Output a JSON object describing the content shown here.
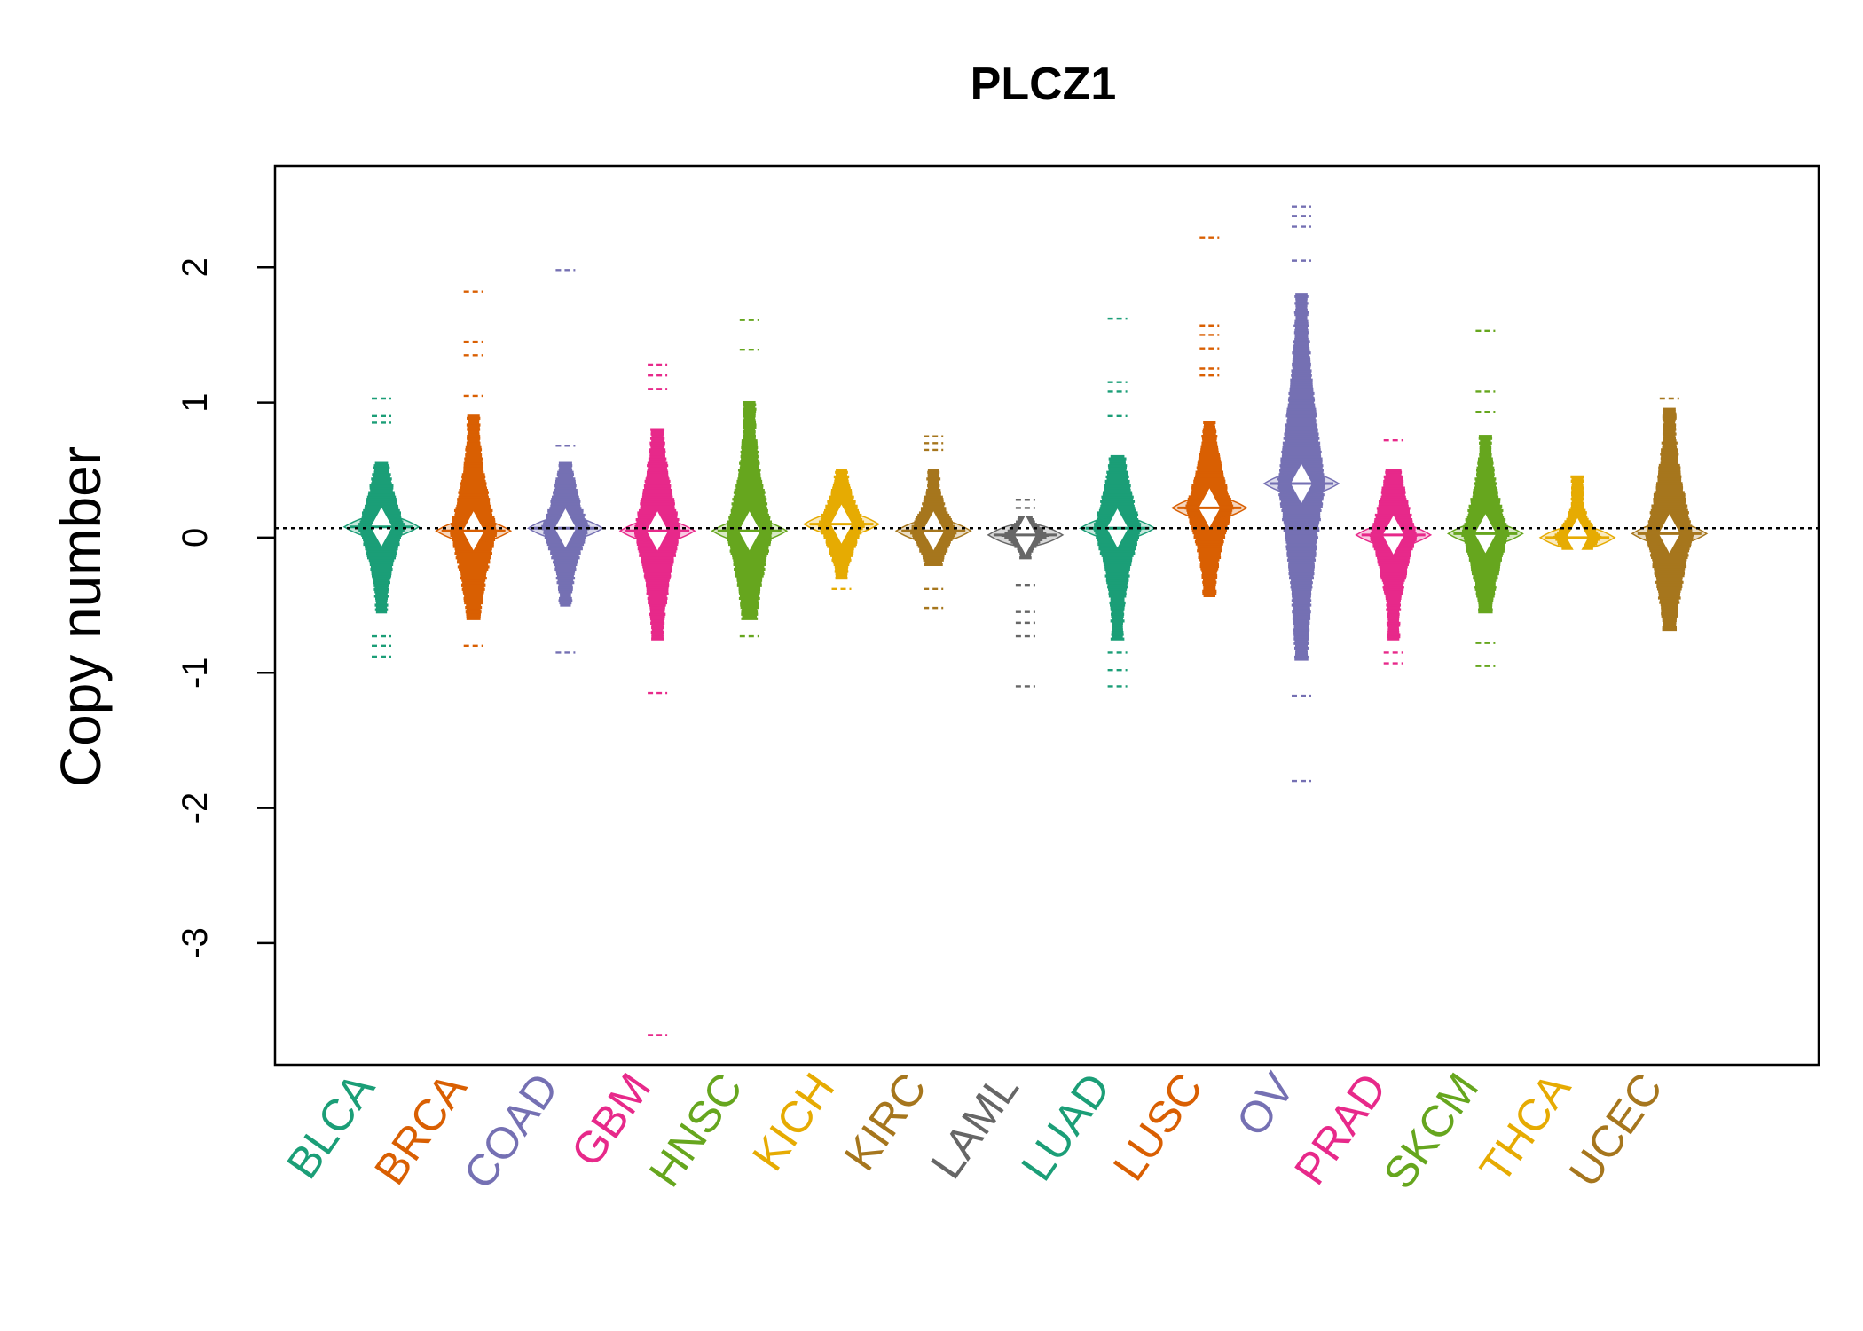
{
  "chart_data": {
    "type": "beanplot",
    "title": "PLCZ1",
    "xlabel": "",
    "ylabel": "Copy number",
    "ylim": [
      -3.9,
      2.75
    ],
    "yticks": [
      -3,
      -2,
      -1,
      0,
      1,
      2
    ],
    "reference_line": 0.07,
    "categories": [
      "BLCA",
      "BRCA",
      "COAD",
      "GBM",
      "HNSC",
      "KICH",
      "KIRC",
      "LAML",
      "LUAD",
      "LUSC",
      "OV",
      "PRAD",
      "SKCM",
      "THCA",
      "UCEC"
    ],
    "colors": {
      "BLCA": "#1b9e77",
      "BRCA": "#d95f02",
      "COAD": "#7570b3",
      "GBM": "#e7298a",
      "HNSC": "#66a61e",
      "KICH": "#e6ab02",
      "KIRC": "#a6761d",
      "LAML": "#666666",
      "LUAD": "#1b9e77",
      "LUSC": "#d95f02",
      "OV": "#7570b3",
      "PRAD": "#e7298a",
      "SKCM": "#66a61e",
      "THCA": "#e6ab02",
      "UCEC": "#a6761d"
    },
    "series": [
      {
        "name": "BLCA",
        "min": -0.88,
        "max": 1.03,
        "mean": 0.08,
        "q_low": -0.55,
        "q_high": 0.55,
        "outliers": [
          1.03,
          0.9,
          0.85,
          -0.73,
          -0.8,
          -0.88
        ]
      },
      {
        "name": "BRCA",
        "min": -0.8,
        "max": 1.82,
        "mean": 0.05,
        "q_low": -0.6,
        "q_high": 0.9,
        "outliers": [
          1.82,
          1.45,
          1.35,
          1.05,
          -0.8
        ]
      },
      {
        "name": "COAD",
        "min": -0.85,
        "max": 1.98,
        "mean": 0.07,
        "q_low": -0.5,
        "q_high": 0.55,
        "outliers": [
          1.98,
          0.68,
          -0.85
        ]
      },
      {
        "name": "GBM",
        "min": -3.68,
        "max": 1.28,
        "mean": 0.05,
        "q_low": -0.75,
        "q_high": 0.8,
        "outliers": [
          1.28,
          1.2,
          1.1,
          -1.15,
          -3.68
        ]
      },
      {
        "name": "HNSC",
        "min": -0.73,
        "max": 1.61,
        "mean": 0.05,
        "q_low": -0.6,
        "q_high": 1.0,
        "outliers": [
          1.61,
          1.39,
          -0.73
        ]
      },
      {
        "name": "KICH",
        "min": -0.38,
        "max": 0.55,
        "mean": 0.1,
        "q_low": -0.3,
        "q_high": 0.5,
        "outliers": [
          -0.38
        ]
      },
      {
        "name": "KIRC",
        "min": -0.52,
        "max": 0.75,
        "mean": 0.05,
        "q_low": -0.2,
        "q_high": 0.5,
        "outliers": [
          0.75,
          0.7,
          0.65,
          -0.38,
          -0.52
        ]
      },
      {
        "name": "LAML",
        "min": -1.1,
        "max": 0.28,
        "mean": 0.02,
        "q_low": -0.15,
        "q_high": 0.15,
        "outliers": [
          0.28,
          0.22,
          -0.35,
          -0.55,
          -0.63,
          -0.73,
          -1.1
        ]
      },
      {
        "name": "LUAD",
        "min": -1.1,
        "max": 1.62,
        "mean": 0.07,
        "q_low": -0.75,
        "q_high": 0.6,
        "outliers": [
          1.62,
          1.15,
          1.08,
          0.9,
          -0.85,
          -0.98,
          -1.1
        ]
      },
      {
        "name": "LUSC",
        "min": -0.43,
        "max": 2.22,
        "mean": 0.22,
        "q_low": -0.43,
        "q_high": 0.85,
        "outliers": [
          2.22,
          1.57,
          1.5,
          1.4,
          1.25,
          1.2
        ]
      },
      {
        "name": "OV",
        "min": -1.8,
        "max": 2.45,
        "mean": 0.4,
        "q_low": -0.9,
        "q_high": 1.8,
        "outliers": [
          2.45,
          2.38,
          2.3,
          2.05,
          -1.17,
          -1.8
        ]
      },
      {
        "name": "PRAD",
        "min": -0.93,
        "max": 0.72,
        "mean": 0.02,
        "q_low": -0.75,
        "q_high": 0.5,
        "outliers": [
          0.72,
          -0.85,
          -0.93
        ]
      },
      {
        "name": "SKCM",
        "min": -0.95,
        "max": 1.53,
        "mean": 0.03,
        "q_low": -0.55,
        "q_high": 0.75,
        "outliers": [
          1.53,
          1.08,
          0.93,
          -0.78,
          -0.95
        ]
      },
      {
        "name": "THCA",
        "min": -0.08,
        "max": 0.45,
        "mean": 0.0,
        "q_low": -0.08,
        "q_high": 0.45,
        "outliers": []
      },
      {
        "name": "UCEC",
        "min": -0.68,
        "max": 1.03,
        "mean": 0.03,
        "q_low": -0.68,
        "q_high": 0.95,
        "outliers": [
          1.03
        ]
      }
    ]
  }
}
